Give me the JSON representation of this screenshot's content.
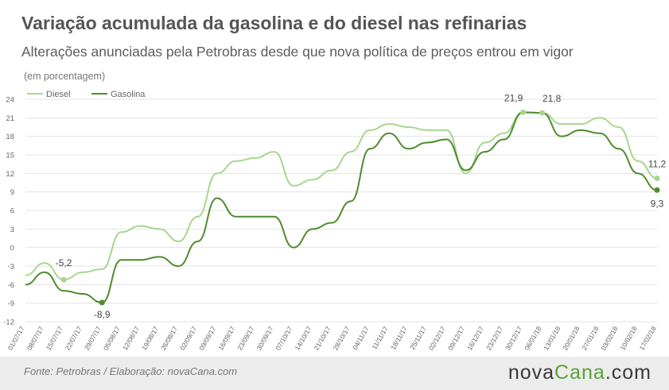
{
  "title": "Variação acumulada da gasolina e do diesel nas refinarias",
  "subtitle": "Alterações anunciadas pela Petrobras desde que nova política de preços entrou em vigor",
  "unit_note": "(em porcentagem)",
  "footer": {
    "source": "Fonte:  Petrobras  / Elaboração:  novaCana.com",
    "logo_main": "nova",
    "logo_accent": "Cana",
    "logo_tail": ".com"
  },
  "colors": {
    "diesel": "#a8d68e",
    "gasolina": "#4e8b2e",
    "grid": "#e3e3e3",
    "text": "#666666"
  },
  "chart_data": {
    "type": "line",
    "title": "Variação acumulada da gasolina e do diesel nas refinarias",
    "ylabel": "(em porcentagem)",
    "ylim": [
      -12,
      24
    ],
    "yticks": [
      -12,
      -9,
      -6,
      -3,
      0,
      3,
      6,
      9,
      12,
      15,
      18,
      21,
      24
    ],
    "grid": "horizontal",
    "legend": "top-left",
    "x": [
      "01/07/17",
      "08/07/17",
      "15/07/17",
      "22/07/17",
      "29/07/17",
      "05/08/17",
      "12/08/17",
      "19/08/17",
      "26/08/17",
      "02/09/17",
      "09/09/17",
      "16/09/17",
      "23/09/17",
      "30/09/17",
      "07/10/17",
      "14/10/17",
      "21/10/17",
      "28/10/17",
      "04/11/17",
      "11/11/17",
      "18/11/17",
      "25/11/17",
      "02/12/17",
      "09/12/17",
      "16/12/17",
      "23/12/17",
      "30/12/17",
      "06/01/18",
      "13/01/18",
      "20/01/18",
      "27/01/18",
      "03/02/18",
      "10/02/18",
      "17/02/18"
    ],
    "series": [
      {
        "name": "Diesel",
        "values": [
          -4.5,
          -2.5,
          -5.2,
          -4.0,
          -3.5,
          2.5,
          3.5,
          3.0,
          1.0,
          5.0,
          12.0,
          14.0,
          14.5,
          15.5,
          10.0,
          11.0,
          12.5,
          15.5,
          19.0,
          20.0,
          19.5,
          19.0,
          19.0,
          12.0,
          17.0,
          18.5,
          21.9,
          21.8,
          20.0,
          20.0,
          21.0,
          19.5,
          14.0,
          11.2
        ]
      },
      {
        "name": "Gasolina",
        "values": [
          -6.0,
          -4.0,
          -7.0,
          -7.5,
          -8.9,
          -2.0,
          -2.0,
          -1.5,
          -3.0,
          1.0,
          8.0,
          5.0,
          5.0,
          5.0,
          0.0,
          3.0,
          4.0,
          7.5,
          16.0,
          18.5,
          16.0,
          17.0,
          17.5,
          12.5,
          15.5,
          17.5,
          21.9,
          21.8,
          18.0,
          19.0,
          18.5,
          16.0,
          12.0,
          9.3
        ]
      }
    ],
    "annotations": [
      {
        "series": "Diesel",
        "label": "-5,2",
        "value": -5.2
      },
      {
        "series": "Gasolina",
        "label": "-8,9",
        "value": -8.9
      },
      {
        "series": "Diesel",
        "label": "21,9",
        "value": 21.9
      },
      {
        "series": "Diesel",
        "label": "21,8",
        "value": 21.8
      },
      {
        "series": "Diesel",
        "label": "11,2",
        "value": 11.2
      },
      {
        "series": "Gasolina",
        "label": "9,3",
        "value": 9.3
      }
    ]
  }
}
